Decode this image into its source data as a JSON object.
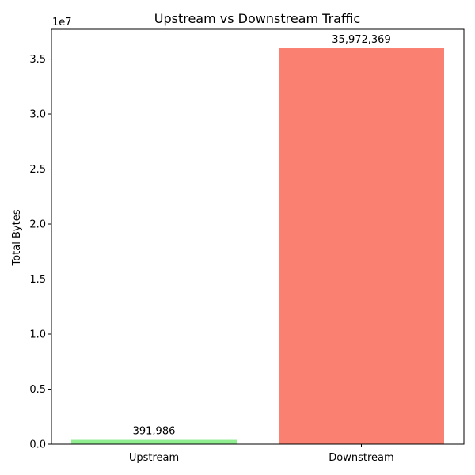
{
  "chart_data": {
    "type": "bar",
    "title": "Upstream vs Downstream Traffic",
    "xlabel": "",
    "ylabel": "Total Bytes",
    "scale_label": "1e7",
    "categories": [
      "Upstream",
      "Downstream"
    ],
    "values": [
      391986,
      35972369
    ],
    "value_labels": [
      "391,986",
      "35,972,369"
    ],
    "colors": [
      "#90ee90",
      "#fa8072"
    ],
    "ylim": [
      0,
      37700000
    ],
    "y_ticks": [
      0,
      5000000,
      10000000,
      15000000,
      20000000,
      25000000,
      30000000,
      35000000
    ],
    "y_tick_labels": [
      "0.0",
      "0.5",
      "1.0",
      "1.5",
      "2.0",
      "2.5",
      "3.0",
      "3.5"
    ],
    "grid": false,
    "legend": "none"
  }
}
